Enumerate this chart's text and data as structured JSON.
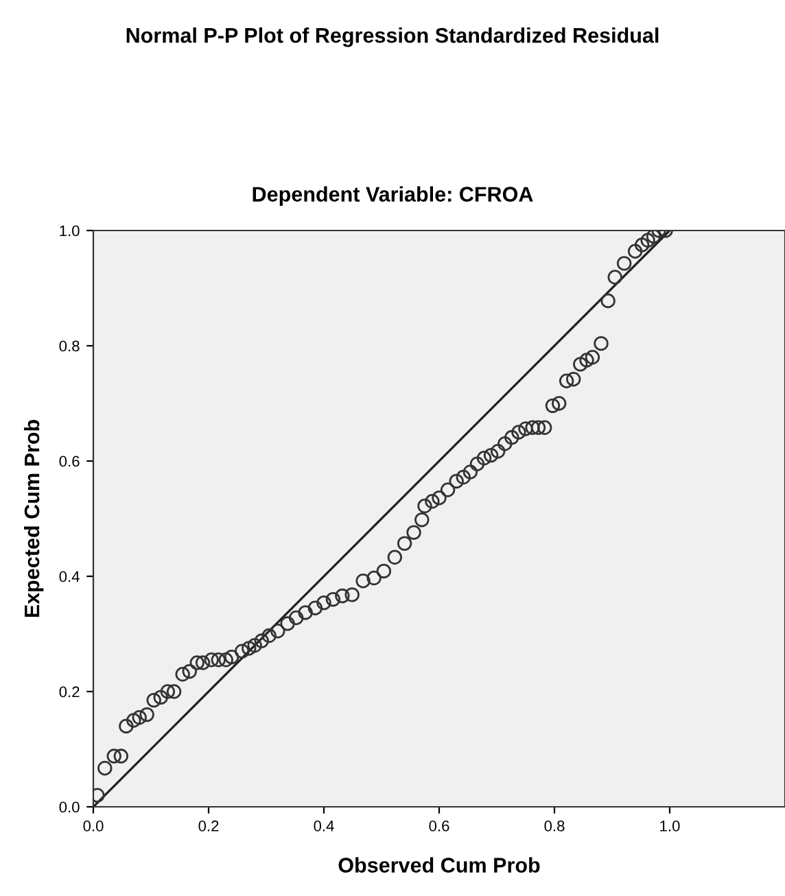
{
  "chart_data": {
    "type": "scatter",
    "title": "Normal P-P Plot of Regression Standardized Residual",
    "subtitle": "Dependent Variable: CFROA",
    "xlabel": "Observed Cum Prob",
    "ylabel": "Expected Cum Prob",
    "xlim": [
      0,
      1.2
    ],
    "ylim": [
      0,
      1.0
    ],
    "xticks": [
      {
        "value": 0,
        "label": "0.0"
      },
      0.2,
      0.4,
      0.6,
      0.8,
      {
        "value": 1.0,
        "label": "1.0"
      }
    ],
    "yticks": [
      {
        "value": 0,
        "label": "0.0"
      },
      0.2,
      0.4,
      0.6,
      0.8,
      {
        "value": 1.0,
        "label": "1.0"
      }
    ],
    "grid": false,
    "legend": false,
    "series": [
      {
        "marker": "circle",
        "color": "#333333",
        "x": [
          0.007,
          0.02,
          0.036,
          0.048,
          0.057,
          0.07,
          0.08,
          0.093,
          0.105,
          0.117,
          0.129,
          0.14,
          0.155,
          0.167,
          0.18,
          0.19,
          0.205,
          0.217,
          0.23,
          0.24,
          0.258,
          0.27,
          0.28,
          0.292,
          0.305,
          0.32,
          0.337,
          0.352,
          0.368,
          0.385,
          0.4,
          0.416,
          0.432,
          0.449,
          0.468,
          0.487,
          0.504,
          0.523,
          0.54,
          0.556,
          0.57,
          0.575,
          0.588,
          0.6,
          0.615,
          0.63,
          0.642,
          0.654,
          0.666,
          0.678,
          0.69,
          0.702,
          0.714,
          0.726,
          0.738,
          0.75,
          0.762,
          0.772,
          0.783,
          0.797,
          0.808,
          0.821,
          0.833,
          0.845,
          0.856,
          0.866,
          0.881,
          0.893,
          0.905,
          0.921,
          0.94,
          0.952,
          0.962,
          0.972,
          0.981,
          0.993
        ],
        "values": [
          0.02,
          0.067,
          0.088,
          0.088,
          0.14,
          0.15,
          0.155,
          0.16,
          0.185,
          0.19,
          0.2,
          0.2,
          0.23,
          0.235,
          0.25,
          0.25,
          0.255,
          0.255,
          0.255,
          0.26,
          0.27,
          0.275,
          0.28,
          0.288,
          0.297,
          0.305,
          0.318,
          0.328,
          0.337,
          0.345,
          0.354,
          0.36,
          0.366,
          0.368,
          0.392,
          0.397,
          0.409,
          0.433,
          0.457,
          0.476,
          0.498,
          0.522,
          0.53,
          0.536,
          0.55,
          0.565,
          0.572,
          0.581,
          0.595,
          0.605,
          0.61,
          0.617,
          0.63,
          0.641,
          0.65,
          0.656,
          0.658,
          0.658,
          0.658,
          0.696,
          0.7,
          0.739,
          0.742,
          0.768,
          0.775,
          0.78,
          0.804,
          0.878,
          0.919,
          0.943,
          0.964,
          0.975,
          0.983,
          0.99,
          1.0,
          1.0
        ]
      },
      {
        "type": "line",
        "color": "#222222",
        "x": [
          0,
          1.0
        ],
        "values": [
          0,
          1.0
        ],
        "line_style": "solid"
      }
    ]
  }
}
